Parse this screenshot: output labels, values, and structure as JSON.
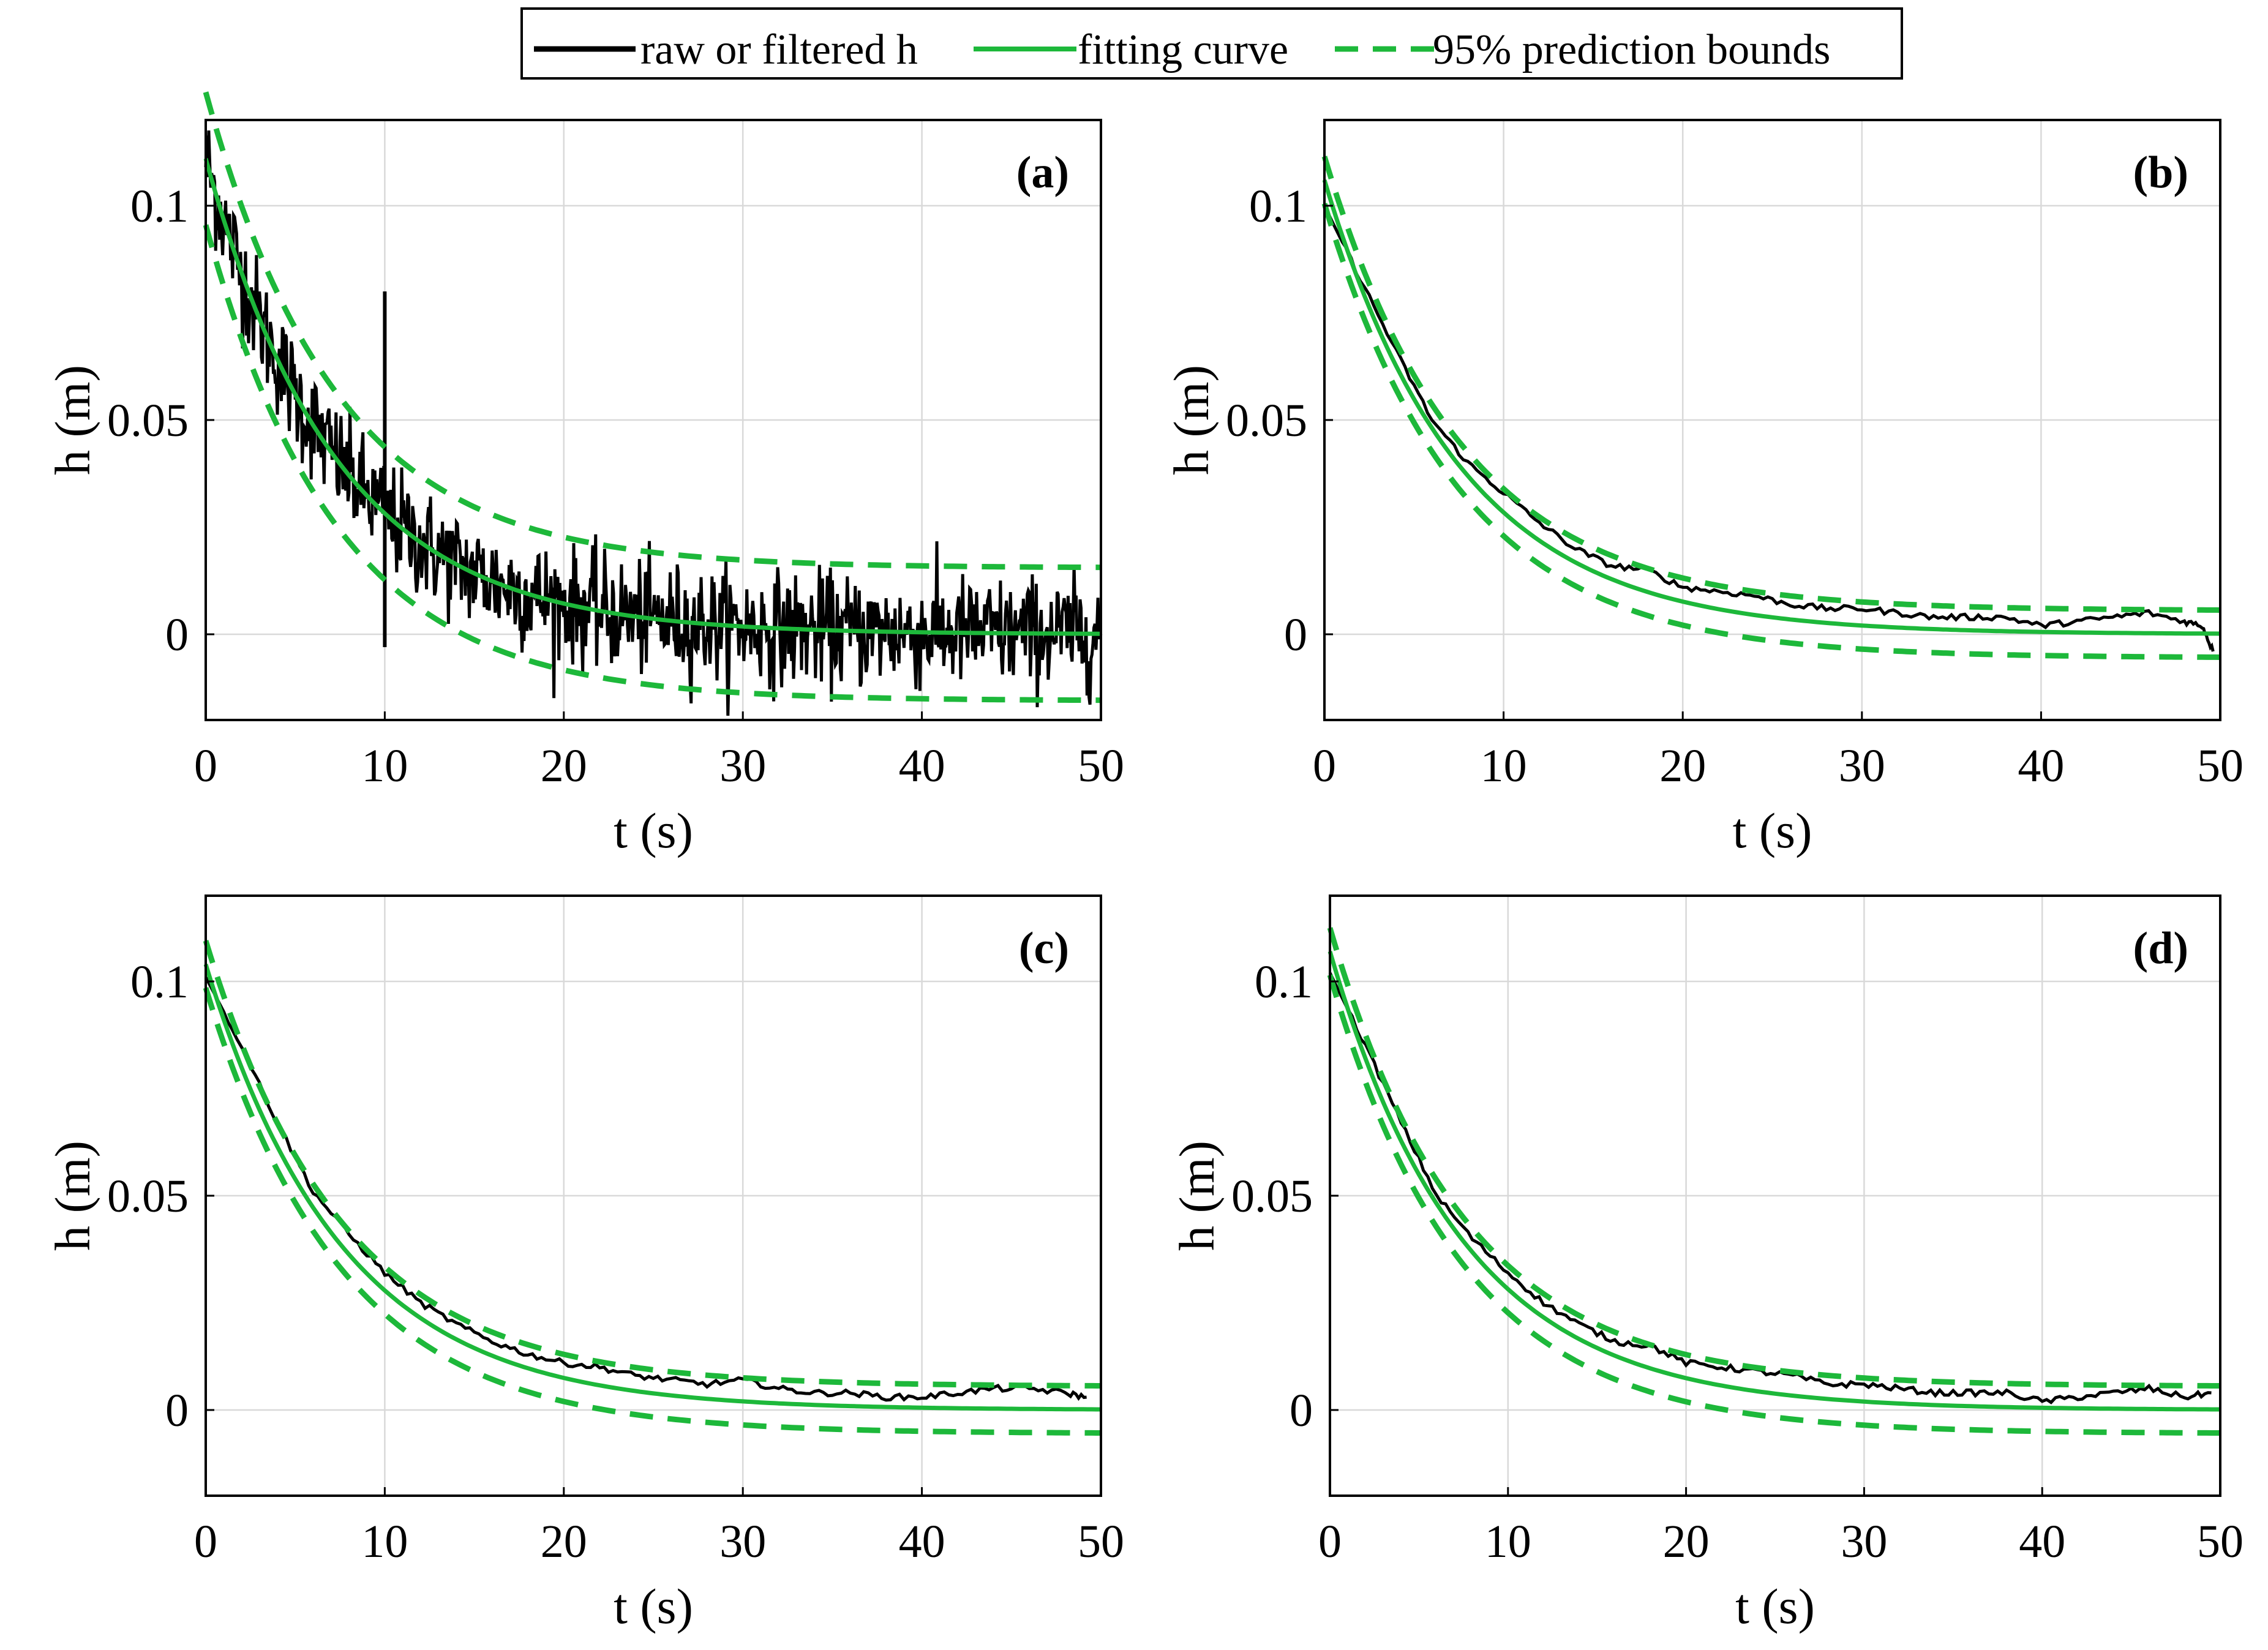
{
  "legend": {
    "entries": [
      {
        "label": "raw or filtered h",
        "color": "#000000",
        "style": "solid"
      },
      {
        "label": "fitting curve",
        "color": "#1db83a",
        "style": "solid"
      },
      {
        "label": "95% prediction bounds",
        "color": "#1db83a",
        "style": "dashed"
      }
    ]
  },
  "colors": {
    "raw": "#000000",
    "fit": "#1db83a",
    "grid": "#d9d9d9",
    "axis": "#000000"
  },
  "chart_data": [
    {
      "id": "a",
      "type": "line",
      "panel_label": "(a)",
      "xlabel": "t (s)",
      "ylabel": "h (m)",
      "xlim": [
        0,
        50
      ],
      "ylim": [
        -0.02,
        0.12
      ],
      "xticks": [
        0,
        10,
        20,
        30,
        40,
        50
      ],
      "xtick_labels": [
        "0",
        "10",
        "20",
        "30",
        "40",
        "50"
      ],
      "yticks": [
        0,
        0.05,
        0.1
      ],
      "ytick_labels": [
        "0",
        "0.05",
        "0.1"
      ],
      "grid": true,
      "fit": {
        "model": "h = A*exp(-t/tau)",
        "A": 0.111,
        "tau": 7.3
      },
      "bounds_halfwidth": 0.0155,
      "raw_noise_sd": 0.0065,
      "spike": {
        "t": 10,
        "min": -0.003,
        "max": 0.08
      },
      "series": [
        "raw h",
        "fitting curve",
        "95% prediction bounds"
      ]
    },
    {
      "id": "b",
      "type": "line",
      "panel_label": "(b)",
      "xlabel": "t (s)",
      "ylabel": "h (m)",
      "xlim": [
        0,
        50
      ],
      "ylim": [
        -0.02,
        0.12
      ],
      "xticks": [
        0,
        10,
        20,
        30,
        40,
        50
      ],
      "xtick_labels": [
        "0",
        "10",
        "20",
        "30",
        "40",
        "50"
      ],
      "yticks": [
        0,
        0.05,
        0.1
      ],
      "ytick_labels": [
        "0",
        "0.05",
        "0.1"
      ],
      "grid": true,
      "fit": {
        "model": "h = A*exp(-t/tau)",
        "A": 0.106,
        "tau": 7.6
      },
      "bounds_halfwidth": 0.0055,
      "filtered_h": {
        "t": [
          0,
          2,
          4,
          6,
          8,
          10,
          12,
          14,
          16,
          18,
          20,
          22,
          24,
          26,
          28,
          30,
          32,
          34,
          36,
          38,
          40,
          42,
          44,
          46,
          48,
          49,
          49.6
        ],
        "h": [
          0.1,
          0.083,
          0.066,
          0.05,
          0.04,
          0.033,
          0.026,
          0.02,
          0.016,
          0.015,
          0.011,
          0.01,
          0.009,
          0.007,
          0.006,
          0.006,
          0.005,
          0.004,
          0.004,
          0.004,
          0.002,
          0.003,
          0.004,
          0.005,
          0.003,
          0.002,
          -0.004
        ]
      },
      "series": [
        "filtered h",
        "fitting curve",
        "95% prediction bounds"
      ]
    },
    {
      "id": "c",
      "type": "line",
      "panel_label": "(c)",
      "xlabel": "t (s)",
      "ylabel": "h (m)",
      "xlim": [
        0,
        50
      ],
      "ylim": [
        -0.02,
        0.12
      ],
      "xticks": [
        0,
        10,
        20,
        30,
        40,
        50
      ],
      "xtick_labels": [
        "0",
        "10",
        "20",
        "30",
        "40",
        "50"
      ],
      "yticks": [
        0,
        0.05,
        0.1
      ],
      "ytick_labels": [
        "0",
        "0.05",
        "0.1"
      ],
      "grid": true,
      "fit": {
        "model": "h = A*exp(-t/tau)",
        "A": 0.104,
        "tau": 7.6
      },
      "bounds_halfwidth": 0.0055,
      "filtered_h": {
        "t": [
          0,
          2,
          4,
          6,
          8,
          10,
          12,
          14,
          16,
          18,
          20,
          22,
          24,
          26,
          28,
          30,
          32,
          34,
          36,
          38,
          40,
          42,
          44,
          46,
          48,
          49.2
        ],
        "h": [
          0.101,
          0.085,
          0.067,
          0.051,
          0.041,
          0.032,
          0.025,
          0.02,
          0.016,
          0.013,
          0.011,
          0.01,
          0.008,
          0.007,
          0.006,
          0.007,
          0.005,
          0.004,
          0.004,
          0.003,
          0.003,
          0.004,
          0.005,
          0.005,
          0.004,
          0.003
        ]
      },
      "series": [
        "filtered h",
        "fitting curve",
        "95% prediction bounds"
      ]
    },
    {
      "id": "d",
      "type": "line",
      "panel_label": "(d)",
      "xlabel": "t (s)",
      "ylabel": "h (m)",
      "xlim": [
        0,
        50
      ],
      "ylim": [
        -0.02,
        0.12
      ],
      "xticks": [
        0,
        10,
        20,
        30,
        40,
        50
      ],
      "xtick_labels": [
        "0",
        "10",
        "20",
        "30",
        "40",
        "50"
      ],
      "yticks": [
        0,
        0.05,
        0.1
      ],
      "ytick_labels": [
        "0",
        "0.05",
        "0.1"
      ],
      "grid": true,
      "fit": {
        "model": "h = A*exp(-t/tau)",
        "A": 0.107,
        "tau": 7.5
      },
      "bounds_halfwidth": 0.0055,
      "filtered_h": {
        "t": [
          0,
          2,
          4,
          6,
          8,
          10,
          12,
          14,
          16,
          18,
          20,
          22,
          24,
          26,
          28,
          30,
          32,
          34,
          36,
          38,
          40,
          42,
          44,
          46,
          48,
          49.5
        ],
        "h": [
          0.102,
          0.085,
          0.067,
          0.05,
          0.04,
          0.032,
          0.025,
          0.02,
          0.016,
          0.015,
          0.011,
          0.01,
          0.009,
          0.008,
          0.006,
          0.006,
          0.005,
          0.004,
          0.004,
          0.004,
          0.002,
          0.003,
          0.004,
          0.005,
          0.003,
          0.004
        ]
      },
      "series": [
        "filtered h",
        "fitting curve",
        "95% prediction bounds"
      ]
    }
  ]
}
